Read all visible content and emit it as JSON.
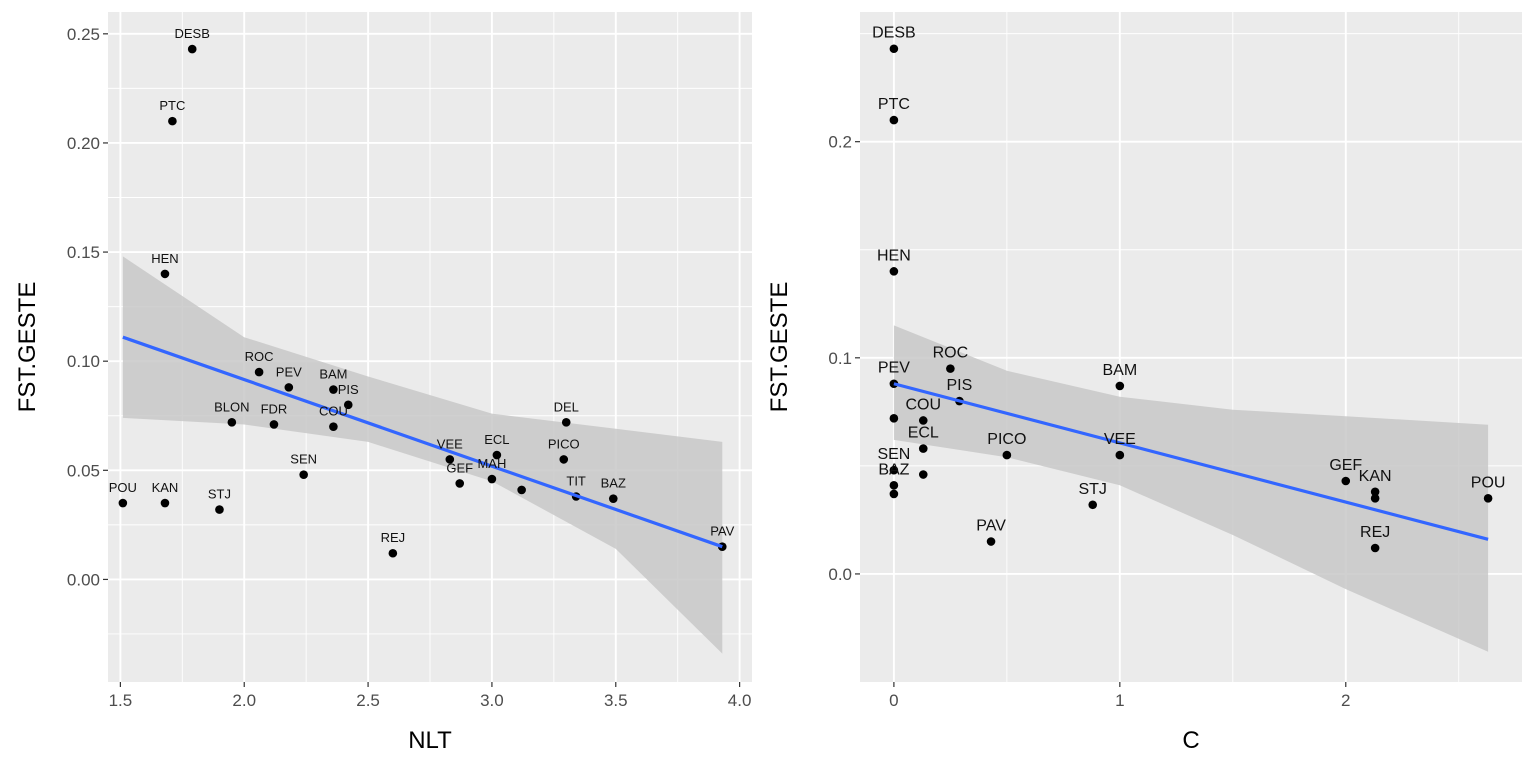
{
  "chart_data": [
    {
      "type": "scatter",
      "xlabel": "NLT",
      "ylabel": "FST.GESTE",
      "xlim": [
        1.45,
        4.05
      ],
      "ylim": [
        -0.047,
        0.26
      ],
      "x_ticks": [
        1.5,
        2.0,
        2.5,
        3.0,
        3.5,
        4.0
      ],
      "x_tick_labels": [
        "1.5",
        "2.0",
        "2.5",
        "3.0",
        "3.5",
        "4.0"
      ],
      "y_ticks": [
        0.0,
        0.05,
        0.1,
        0.15,
        0.2,
        0.25
      ],
      "y_tick_labels": [
        "0.00",
        "0.05",
        "0.10",
        "0.15",
        "0.20",
        "0.25"
      ],
      "grid": true,
      "points": [
        {
          "label": "DESB",
          "x": 1.79,
          "y": 0.243
        },
        {
          "label": "PTC",
          "x": 1.71,
          "y": 0.21
        },
        {
          "label": "HEN",
          "x": 1.68,
          "y": 0.14
        },
        {
          "label": "ROC",
          "x": 2.06,
          "y": 0.095
        },
        {
          "label": "PEV",
          "x": 2.18,
          "y": 0.088
        },
        {
          "label": "BAM",
          "x": 2.36,
          "y": 0.087
        },
        {
          "label": "PIS",
          "x": 2.42,
          "y": 0.08
        },
        {
          "label": "BLON",
          "x": 1.95,
          "y": 0.072
        },
        {
          "label": "FDR",
          "x": 2.12,
          "y": 0.071
        },
        {
          "label": "COU",
          "x": 2.36,
          "y": 0.07
        },
        {
          "label": "DEL",
          "x": 3.3,
          "y": 0.072
        },
        {
          "label": "VEE",
          "x": 2.83,
          "y": 0.055
        },
        {
          "label": "ECL",
          "x": 3.02,
          "y": 0.057
        },
        {
          "label": "PICO",
          "x": 3.29,
          "y": 0.055
        },
        {
          "label": "GEF",
          "x": 2.87,
          "y": 0.044
        },
        {
          "label": "MAH",
          "x": 3.0,
          "y": 0.046
        },
        {
          "label": "",
          "x": 3.12,
          "y": 0.041
        },
        {
          "label": "TIT",
          "x": 3.34,
          "y": 0.038
        },
        {
          "label": "BAZ",
          "x": 3.49,
          "y": 0.037
        },
        {
          "label": "SEN",
          "x": 2.24,
          "y": 0.048
        },
        {
          "label": "POU",
          "x": 1.51,
          "y": 0.035
        },
        {
          "label": "KAN",
          "x": 1.68,
          "y": 0.035
        },
        {
          "label": "STJ",
          "x": 1.9,
          "y": 0.032
        },
        {
          "label": "REJ",
          "x": 2.6,
          "y": 0.012
        },
        {
          "label": "PAV",
          "x": 3.93,
          "y": 0.015
        }
      ],
      "fit": {
        "x": [
          1.51,
          3.93
        ],
        "y": [
          0.111,
          0.015
        ]
      },
      "ribbon": {
        "x": [
          1.51,
          2.0,
          2.5,
          3.0,
          3.5,
          3.93
        ],
        "lower": [
          0.074,
          0.071,
          0.063,
          0.045,
          0.014,
          -0.034
        ],
        "upper": [
          0.148,
          0.111,
          0.093,
          0.076,
          0.069,
          0.063
        ]
      },
      "colors": {
        "panel": "#ebebeb",
        "grid": "#ffffff",
        "fit": "#3366ff",
        "ribbon": "#c8c8c8",
        "point": "#000000"
      }
    },
    {
      "type": "scatter",
      "xlabel": "C",
      "ylabel": "FST.GESTE",
      "xlim": [
        -0.15,
        2.78
      ],
      "ylim": [
        -0.05,
        0.26
      ],
      "x_ticks": [
        0,
        1,
        2
      ],
      "x_tick_labels": [
        "0",
        "1",
        "2"
      ],
      "y_ticks": [
        0.0,
        0.1,
        0.2
      ],
      "y_tick_labels": [
        "0.0",
        "0.1",
        "0.2"
      ],
      "grid": true,
      "points": [
        {
          "label": "DESB",
          "x": 0.0,
          "y": 0.243
        },
        {
          "label": "PTC",
          "x": 0.0,
          "y": 0.21
        },
        {
          "label": "HEN",
          "x": 0.0,
          "y": 0.14
        },
        {
          "label": "ROC",
          "x": 0.25,
          "y": 0.095
        },
        {
          "label": "PEV",
          "x": 0.0,
          "y": 0.088
        },
        {
          "label": "BAM",
          "x": 1.0,
          "y": 0.087
        },
        {
          "label": "PIS",
          "x": 0.29,
          "y": 0.08
        },
        {
          "label": "COU",
          "x": 0.13,
          "y": 0.071
        },
        {
          "label": "",
          "x": 0.0,
          "y": 0.072
        },
        {
          "label": "ECL",
          "x": 0.13,
          "y": 0.058
        },
        {
          "label": "PICO",
          "x": 0.5,
          "y": 0.055
        },
        {
          "label": "VEE",
          "x": 1.0,
          "y": 0.055
        },
        {
          "label": "SEN",
          "x": 0.0,
          "y": 0.048
        },
        {
          "label": "",
          "x": 0.13,
          "y": 0.046
        },
        {
          "label": "BAZ",
          "x": 0.0,
          "y": 0.041
        },
        {
          "label": "",
          "x": 0.0,
          "y": 0.037
        },
        {
          "label": "STJ",
          "x": 0.88,
          "y": 0.032
        },
        {
          "label": "GEF",
          "x": 2.0,
          "y": 0.043
        },
        {
          "label": "KAN",
          "x": 2.13,
          "y": 0.038
        },
        {
          "label": "",
          "x": 2.13,
          "y": 0.035
        },
        {
          "label": "POU",
          "x": 2.63,
          "y": 0.035
        },
        {
          "label": "REJ",
          "x": 2.13,
          "y": 0.012
        },
        {
          "label": "PAV",
          "x": 0.43,
          "y": 0.015
        }
      ],
      "fit": {
        "x": [
          0.0,
          2.63
        ],
        "y": [
          0.088,
          0.016
        ]
      },
      "ribbon": {
        "x": [
          0.0,
          0.5,
          1.0,
          1.5,
          2.0,
          2.63
        ],
        "lower": [
          0.062,
          0.054,
          0.041,
          0.018,
          -0.007,
          -0.036
        ],
        "upper": [
          0.115,
          0.094,
          0.082,
          0.076,
          0.073,
          0.069
        ]
      },
      "colors": {
        "panel": "#ebebeb",
        "grid": "#ffffff",
        "fit": "#3366ff",
        "ribbon": "#c8c8c8",
        "point": "#000000"
      }
    }
  ]
}
